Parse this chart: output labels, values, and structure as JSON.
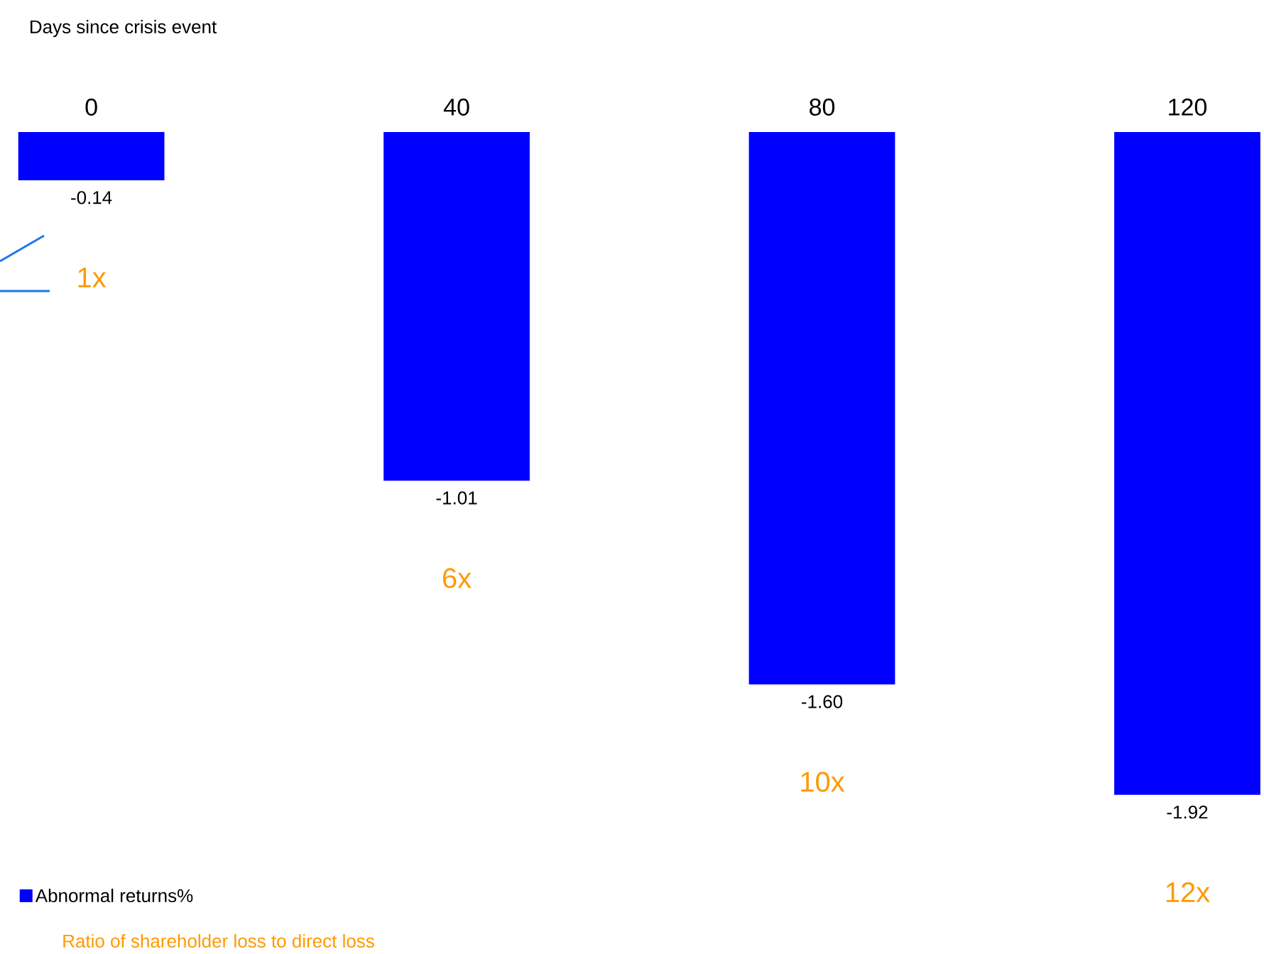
{
  "chart_data": {
    "type": "bar",
    "xlabel": "Days since crisis event",
    "categories": [
      "0",
      "40",
      "80",
      "120"
    ],
    "series": [
      {
        "name": "Abnormal returns%",
        "color": "#0000ff",
        "values": [
          -0.14,
          -1.01,
          -1.6,
          -1.92
        ],
        "value_labels": [
          "-0.14",
          "-1.01",
          "-1.60",
          "-1.92"
        ]
      }
    ],
    "legend": "bottom left",
    "annotations": [
      "1x",
      "6x",
      "10x",
      "12x",
      "Ratio of shareholder loss to direct loss"
    ]
  }
}
